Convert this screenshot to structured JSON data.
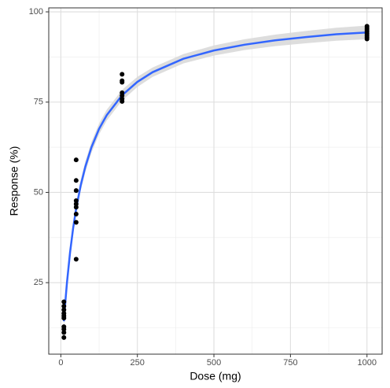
{
  "chart_data": {
    "type": "scatter",
    "x_label": "Dose (mg)",
    "y_label": "Response (%)",
    "xlim": [
      -39.5,
      1049.5
    ],
    "ylim": [
      5.2,
      101.1
    ],
    "xticks": [
      0,
      250,
      500,
      750,
      1000
    ],
    "yticks": [
      25,
      50,
      75,
      100
    ],
    "x_minor_ticks": [
      125,
      375,
      625,
      875
    ],
    "y_minor_ticks": [
      12.5,
      37.5,
      62.5,
      87.5
    ],
    "grid": true,
    "points": {
      "color": "#000000",
      "x": [
        10,
        10,
        10,
        10,
        10,
        10,
        10,
        10,
        10,
        10,
        50,
        50,
        50,
        50,
        50,
        50,
        50,
        50,
        50,
        200,
        200,
        200,
        200,
        200,
        200,
        200,
        1000,
        1000,
        1000,
        1000,
        1000,
        1000,
        1000,
        1000
      ],
      "y": [
        19.7,
        18.5,
        17.5,
        16.5,
        15.8,
        15.2,
        12.8,
        12.1,
        11.2,
        9.8,
        59,
        53.3,
        50.5,
        47.7,
        46.8,
        45.9,
        44,
        41.7,
        31.5,
        82.7,
        80.9,
        80.5,
        77.6,
        76.8,
        75.9,
        75.2,
        96,
        95.5,
        95,
        94.5,
        94,
        93.5,
        93,
        92.5
      ]
    },
    "fit": {
      "color": "#3366FF",
      "band_color": "#d9d9d9",
      "x": [
        10,
        15,
        20,
        30,
        40,
        50,
        65,
        80,
        100,
        125,
        150,
        200,
        250,
        300,
        400,
        500,
        600,
        700,
        800,
        900,
        1000
      ],
      "y": [
        14.3,
        20.0,
        25.0,
        33.3,
        40.0,
        45.5,
        52.0,
        57.1,
        62.5,
        67.6,
        71.4,
        76.9,
        80.6,
        83.3,
        87.0,
        89.3,
        90.9,
        92.1,
        93.0,
        93.8,
        94.3
      ],
      "lower": [
        11.8,
        17.8,
        23.0,
        31.5,
        38.4,
        44.0,
        50.5,
        55.6,
        61.0,
        66.1,
        69.9,
        75.4,
        79.2,
        82.0,
        85.7,
        87.9,
        89.4,
        90.5,
        91.3,
        92.0,
        92.4
      ],
      "upper": [
        16.8,
        22.2,
        27.0,
        35.1,
        41.6,
        47.0,
        53.5,
        58.6,
        64.0,
        69.1,
        72.9,
        78.4,
        82.0,
        84.6,
        88.3,
        90.7,
        92.4,
        93.7,
        94.7,
        95.6,
        96.2
      ]
    }
  }
}
